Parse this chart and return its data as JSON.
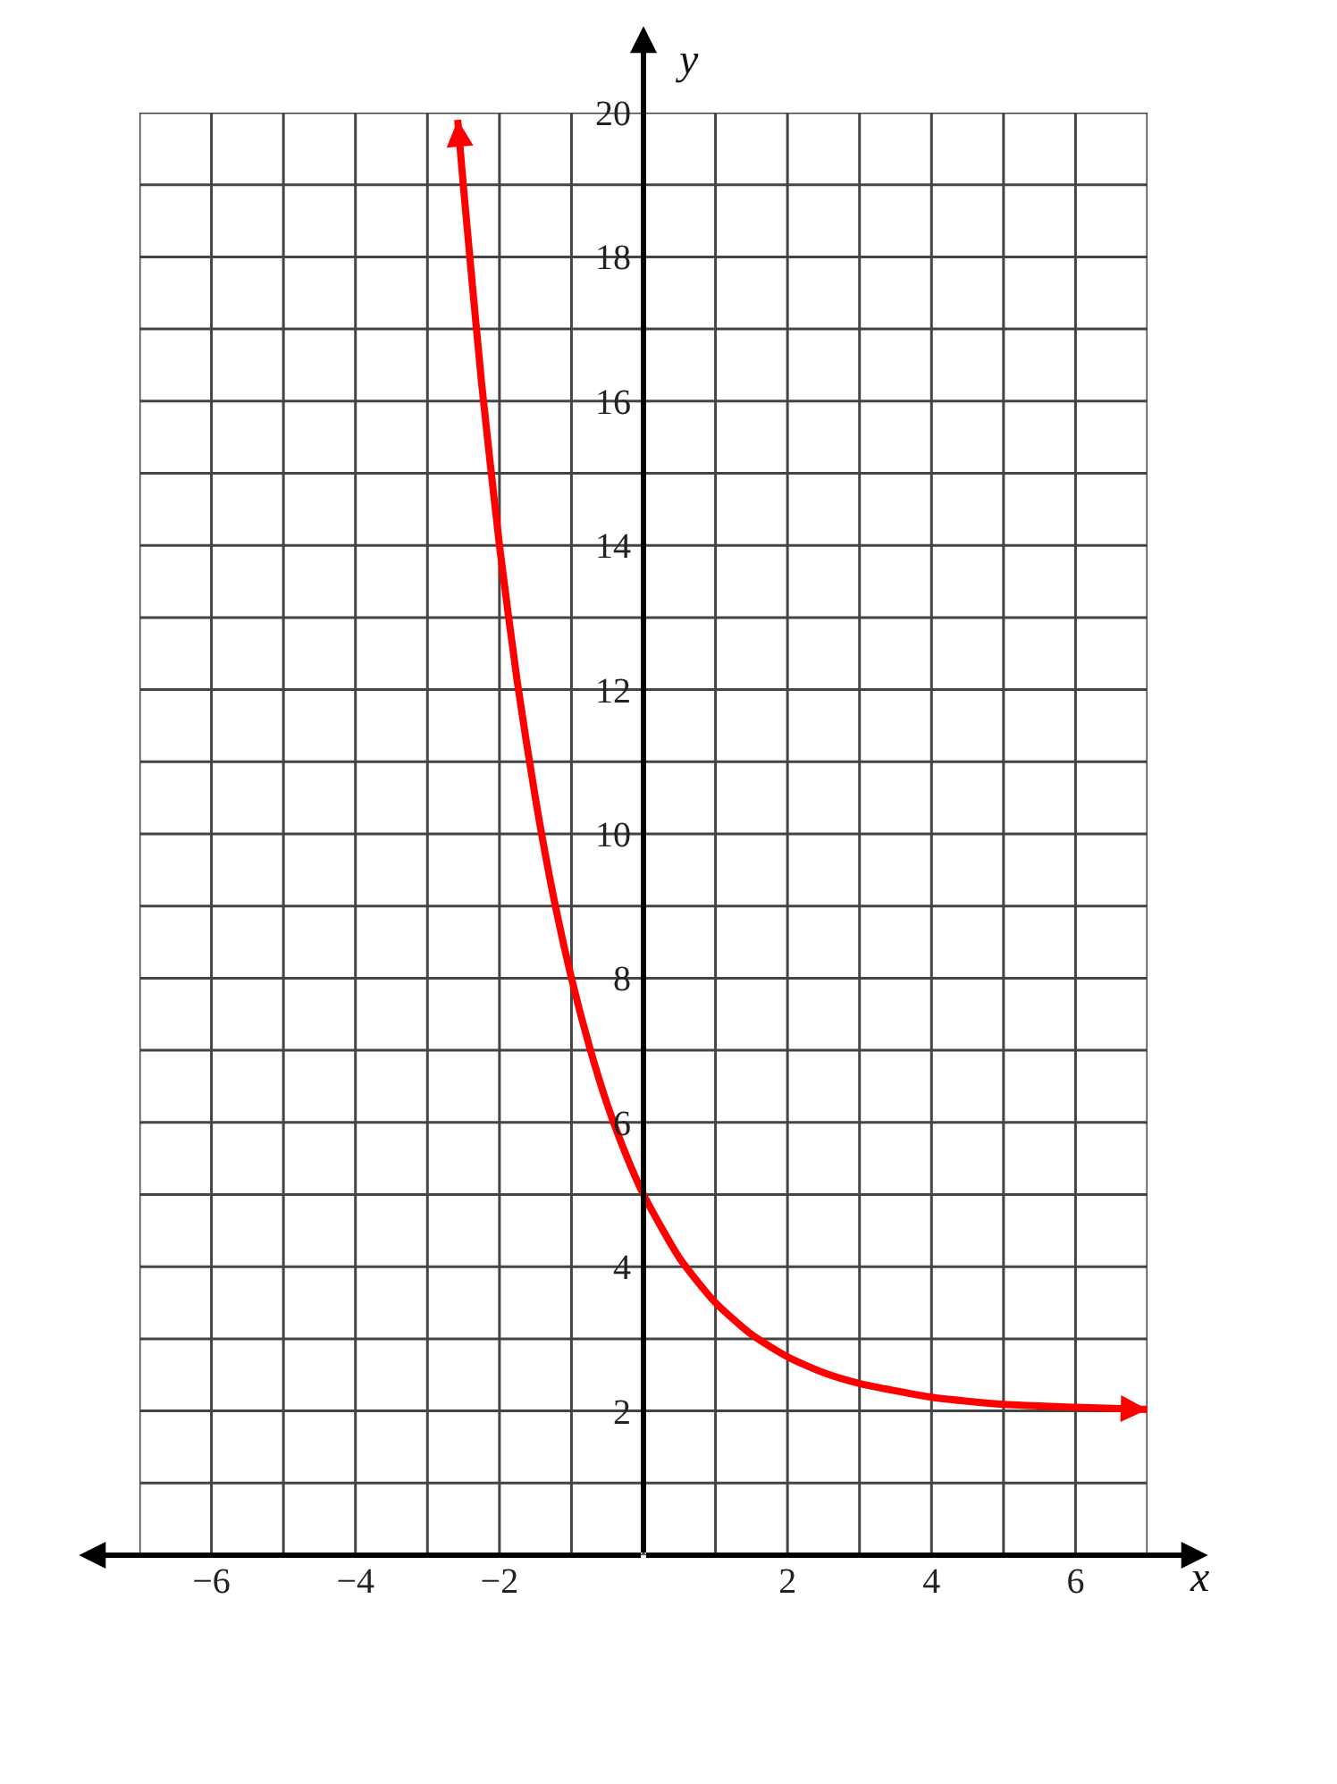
{
  "chart_data": {
    "type": "line",
    "xlabel": "x",
    "ylabel": "y",
    "x": [
      -2.58,
      -2.5,
      -2.25,
      -2,
      -1.75,
      -1.5,
      -1.25,
      -1,
      -0.75,
      -0.5,
      -0.25,
      0,
      0.5,
      1,
      1.5,
      2,
      2.5,
      3,
      4,
      5,
      6,
      7
    ],
    "series": [
      {
        "color": "#ff0000",
        "values": [
          19.9,
          18.97,
          16.27,
          14,
          12.09,
          10.49,
          9.13,
          8,
          7.05,
          6.24,
          5.57,
          5,
          4.12,
          3.5,
          3.06,
          2.75,
          2.53,
          2.38,
          2.19,
          2.09,
          2.05,
          2.02
        ]
      }
    ],
    "xlim": [
      -7,
      7
    ],
    "ylim": [
      0,
      20
    ],
    "xticks": [
      {
        "value": -7,
        "label": null
      },
      {
        "value": -6,
        "label": "−6"
      },
      {
        "value": -5,
        "label": null
      },
      {
        "value": -4,
        "label": "−4"
      },
      {
        "value": -3,
        "label": null
      },
      {
        "value": -2,
        "label": "−2"
      },
      {
        "value": -1,
        "label": null
      },
      {
        "value": 0,
        "label": null
      },
      {
        "value": 1,
        "label": null
      },
      2,
      {
        "value": 3,
        "label": null
      },
      4,
      {
        "value": 5,
        "label": null
      },
      6,
      {
        "value": 7,
        "label": null
      }
    ],
    "yticks": [
      {
        "value": 0,
        "label": null
      },
      {
        "value": 1,
        "label": null
      },
      2,
      {
        "value": 3,
        "label": null
      },
      4,
      {
        "value": 5,
        "label": null
      },
      6,
      {
        "value": 7,
        "label": null
      },
      8,
      {
        "value": 9,
        "label": null
      },
      10,
      {
        "value": 11,
        "label": null
      },
      12,
      {
        "value": 13,
        "label": null
      },
      14,
      {
        "value": 15,
        "label": null
      },
      16,
      {
        "value": 17,
        "label": null
      },
      18,
      {
        "value": 19,
        "label": null
      },
      20
    ],
    "grid": true,
    "marker": "none",
    "line_style": "solid"
  }
}
